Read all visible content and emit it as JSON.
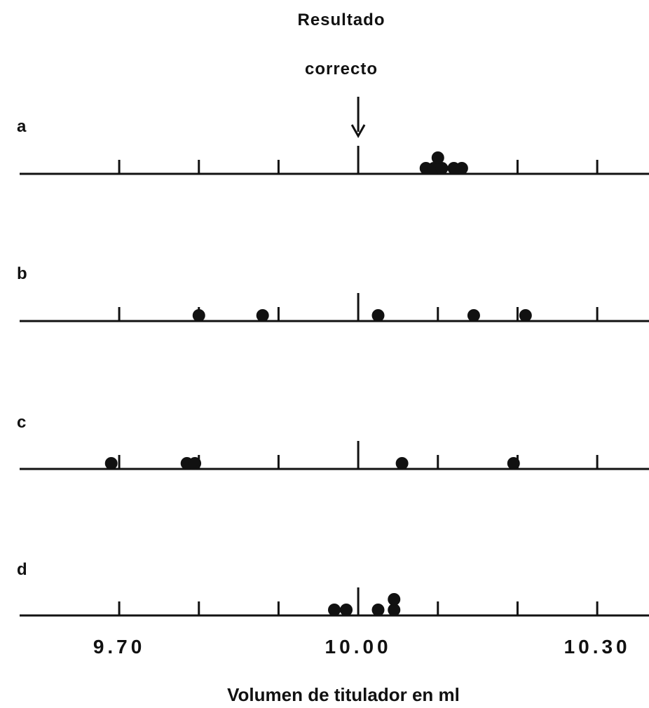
{
  "chart_data": {
    "type": "scatter",
    "annotation": {
      "line1": "Resultado",
      "line2": "correcto",
      "x": 10.0
    },
    "xlabel": "Volumen de titulador en ml",
    "xlim": [
      9.575,
      10.365
    ],
    "tick_positions": [
      9.7,
      9.8,
      9.9,
      10.0,
      10.1,
      10.2,
      10.3
    ],
    "tick_labels": [
      {
        "x": 9.7,
        "text": "9.70"
      },
      {
        "x": 10.0,
        "text": "10.00"
      },
      {
        "x": 10.3,
        "text": "10.30"
      }
    ],
    "major_tick": 10.0,
    "grid": false,
    "series": [
      {
        "name": "a",
        "points": [
          {
            "x": 10.085,
            "level": 0
          },
          {
            "x": 10.095,
            "level": 0
          },
          {
            "x": 10.105,
            "level": 0
          },
          {
            "x": 10.12,
            "level": 0
          },
          {
            "x": 10.13,
            "level": 0
          },
          {
            "x": 10.1,
            "level": 1
          }
        ]
      },
      {
        "name": "b",
        "points": [
          {
            "x": 9.8,
            "level": 0
          },
          {
            "x": 9.88,
            "level": 0
          },
          {
            "x": 10.025,
            "level": 0
          },
          {
            "x": 10.145,
            "level": 0
          },
          {
            "x": 10.21,
            "level": 0
          }
        ]
      },
      {
        "name": "c",
        "points": [
          {
            "x": 9.69,
            "level": 0
          },
          {
            "x": 9.785,
            "level": 0
          },
          {
            "x": 9.795,
            "level": 0
          },
          {
            "x": 10.055,
            "level": 0
          },
          {
            "x": 10.195,
            "level": 0
          }
        ]
      },
      {
        "name": "d",
        "points": [
          {
            "x": 9.97,
            "level": 0
          },
          {
            "x": 9.985,
            "level": 0
          },
          {
            "x": 10.025,
            "level": 0
          },
          {
            "x": 10.045,
            "level": 0
          },
          {
            "x": 10.045,
            "level": 1
          }
        ]
      }
    ]
  }
}
